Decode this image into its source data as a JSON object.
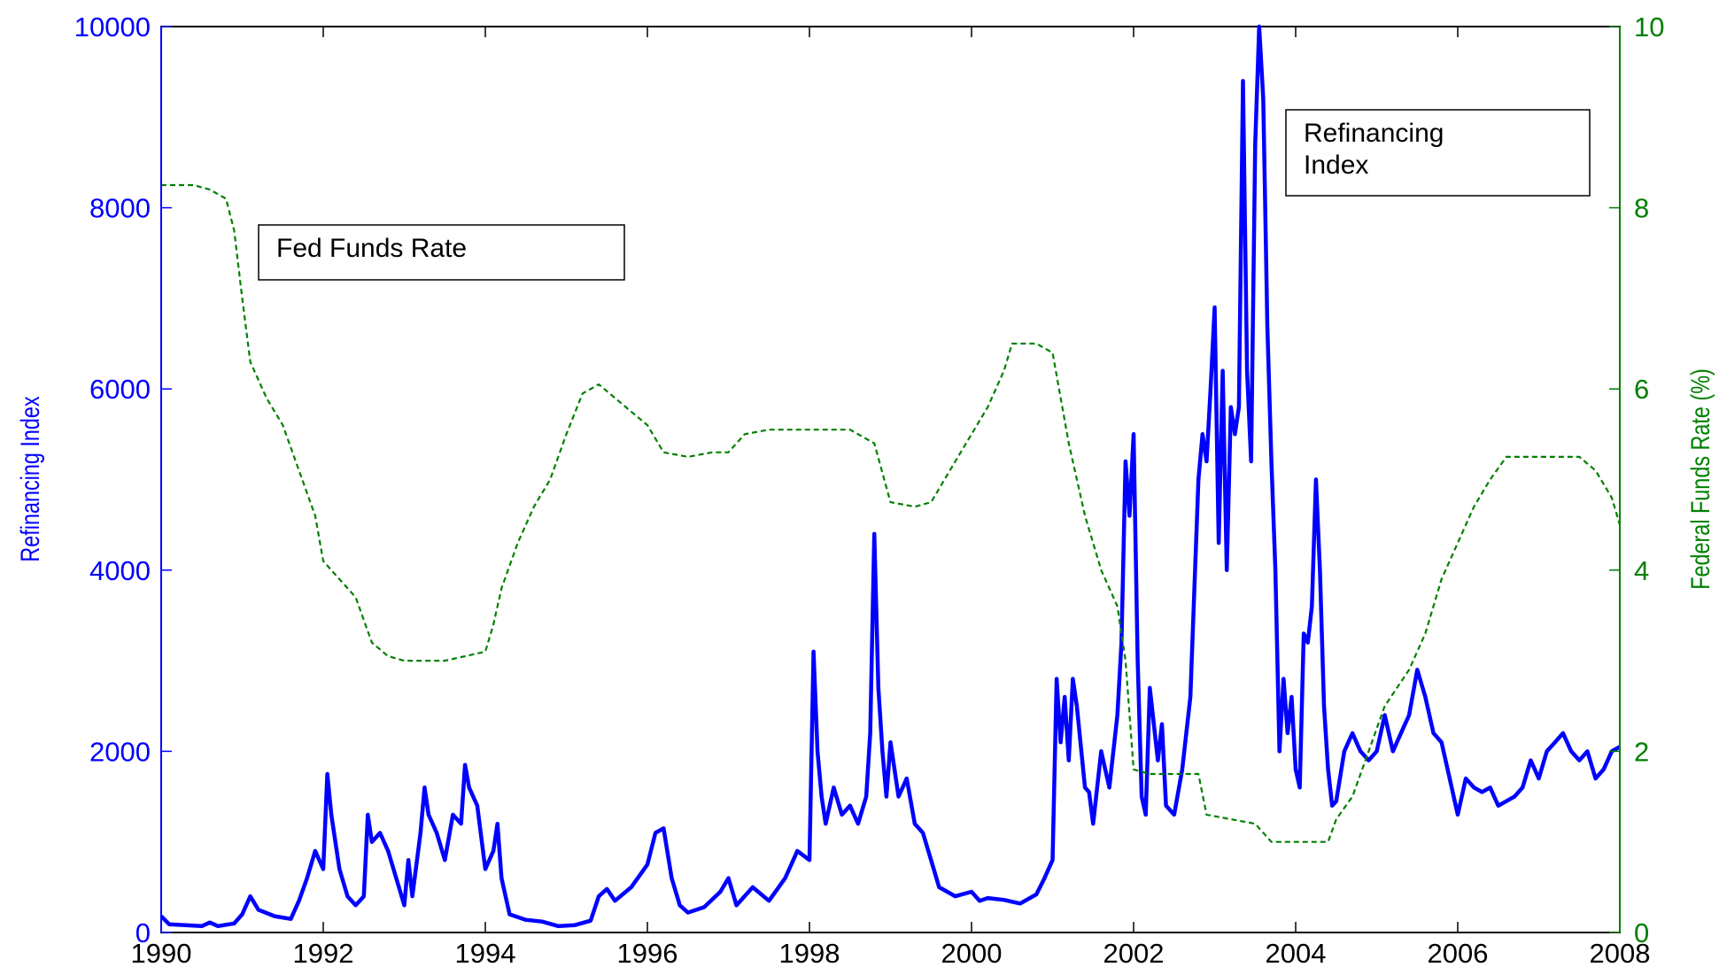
{
  "chart_data": {
    "type": "line",
    "xlim": [
      1990,
      2008
    ],
    "ylim_left": [
      0,
      10000
    ],
    "ylim_right": [
      0,
      10
    ],
    "x_ticks": [
      "1990",
      "1992",
      "1994",
      "1996",
      "1998",
      "2000",
      "2002",
      "2004",
      "2006",
      "2008"
    ],
    "y_left_ticks": [
      "0",
      "2000",
      "4000",
      "6000",
      "8000",
      "10000"
    ],
    "y_right_ticks": [
      "0",
      "2",
      "4",
      "6",
      "8",
      "10"
    ],
    "ylabel_left": "Refinancing Index",
    "ylabel_right": "Federal Funds Rate (%)",
    "grid": false,
    "colors": {
      "refinancing": "#0000ff",
      "fed_funds": "#008000",
      "left_axis": "#0000ff",
      "right_axis": "#008000"
    },
    "annotations": [
      {
        "text": "Fed Funds Rate",
        "lines": [
          "Fed Funds Rate"
        ]
      },
      {
        "text": "Refinancing Index",
        "lines": [
          "Refinancing",
          "Index"
        ]
      }
    ],
    "series": [
      {
        "axis": "left",
        "style": "solid",
        "points": [
          [
            1990.0,
            180
          ],
          [
            1990.1,
            90
          ],
          [
            1990.3,
            80
          ],
          [
            1990.5,
            70
          ],
          [
            1990.6,
            110
          ],
          [
            1990.7,
            70
          ],
          [
            1990.9,
            100
          ],
          [
            1991.0,
            200
          ],
          [
            1991.1,
            400
          ],
          [
            1991.2,
            250
          ],
          [
            1991.4,
            180
          ],
          [
            1991.6,
            150
          ],
          [
            1991.7,
            350
          ],
          [
            1991.8,
            600
          ],
          [
            1991.9,
            900
          ],
          [
            1992.0,
            700
          ],
          [
            1992.05,
            1750
          ],
          [
            1992.1,
            1300
          ],
          [
            1992.2,
            700
          ],
          [
            1992.3,
            400
          ],
          [
            1992.4,
            300
          ],
          [
            1992.5,
            400
          ],
          [
            1992.55,
            1300
          ],
          [
            1992.6,
            1000
          ],
          [
            1992.7,
            1100
          ],
          [
            1992.8,
            900
          ],
          [
            1992.9,
            600
          ],
          [
            1993.0,
            300
          ],
          [
            1993.05,
            800
          ],
          [
            1993.1,
            400
          ],
          [
            1993.2,
            1100
          ],
          [
            1993.25,
            1600
          ],
          [
            1993.3,
            1300
          ],
          [
            1993.4,
            1100
          ],
          [
            1993.5,
            800
          ],
          [
            1993.6,
            1300
          ],
          [
            1993.7,
            1200
          ],
          [
            1993.75,
            1850
          ],
          [
            1993.8,
            1600
          ],
          [
            1993.9,
            1400
          ],
          [
            1994.0,
            700
          ],
          [
            1994.1,
            900
          ],
          [
            1994.15,
            1200
          ],
          [
            1994.2,
            600
          ],
          [
            1994.3,
            200
          ],
          [
            1994.5,
            140
          ],
          [
            1994.7,
            120
          ],
          [
            1994.9,
            70
          ],
          [
            1995.1,
            80
          ],
          [
            1995.3,
            130
          ],
          [
            1995.4,
            400
          ],
          [
            1995.5,
            480
          ],
          [
            1995.6,
            350
          ],
          [
            1995.8,
            500
          ],
          [
            1996.0,
            750
          ],
          [
            1996.1,
            1100
          ],
          [
            1996.2,
            1150
          ],
          [
            1996.3,
            600
          ],
          [
            1996.4,
            300
          ],
          [
            1996.5,
            220
          ],
          [
            1996.7,
            280
          ],
          [
            1996.9,
            450
          ],
          [
            1997.0,
            600
          ],
          [
            1997.1,
            300
          ],
          [
            1997.3,
            500
          ],
          [
            1997.5,
            350
          ],
          [
            1997.7,
            600
          ],
          [
            1997.85,
            900
          ],
          [
            1998.0,
            800
          ],
          [
            1998.05,
            3100
          ],
          [
            1998.1,
            2000
          ],
          [
            1998.15,
            1500
          ],
          [
            1998.2,
            1200
          ],
          [
            1998.3,
            1600
          ],
          [
            1998.4,
            1300
          ],
          [
            1998.5,
            1400
          ],
          [
            1998.6,
            1200
          ],
          [
            1998.7,
            1500
          ],
          [
            1998.75,
            2200
          ],
          [
            1998.8,
            4400
          ],
          [
            1998.85,
            2700
          ],
          [
            1998.9,
            2000
          ],
          [
            1998.95,
            1500
          ],
          [
            1999.0,
            2100
          ],
          [
            1999.1,
            1500
          ],
          [
            1999.2,
            1700
          ],
          [
            1999.3,
            1200
          ],
          [
            1999.4,
            1100
          ],
          [
            1999.5,
            800
          ],
          [
            1999.6,
            500
          ],
          [
            1999.8,
            400
          ],
          [
            2000.0,
            450
          ],
          [
            2000.1,
            350
          ],
          [
            2000.2,
            380
          ],
          [
            2000.4,
            360
          ],
          [
            2000.6,
            320
          ],
          [
            2000.8,
            420
          ],
          [
            2000.9,
            600
          ],
          [
            2001.0,
            800
          ],
          [
            2001.05,
            2800
          ],
          [
            2001.1,
            2100
          ],
          [
            2001.15,
            2600
          ],
          [
            2001.2,
            1900
          ],
          [
            2001.25,
            2800
          ],
          [
            2001.3,
            2500
          ],
          [
            2001.4,
            1600
          ],
          [
            2001.45,
            1550
          ],
          [
            2001.5,
            1200
          ],
          [
            2001.6,
            2000
          ],
          [
            2001.7,
            1600
          ],
          [
            2001.8,
            2400
          ],
          [
            2001.85,
            3200
          ],
          [
            2001.9,
            5200
          ],
          [
            2001.95,
            4600
          ],
          [
            2002.0,
            5500
          ],
          [
            2002.05,
            3000
          ],
          [
            2002.1,
            1500
          ],
          [
            2002.15,
            1300
          ],
          [
            2002.2,
            2700
          ],
          [
            2002.3,
            1900
          ],
          [
            2002.35,
            2300
          ],
          [
            2002.4,
            1400
          ],
          [
            2002.5,
            1300
          ],
          [
            2002.6,
            1800
          ],
          [
            2002.7,
            2600
          ],
          [
            2002.8,
            5000
          ],
          [
            2002.85,
            5500
          ],
          [
            2002.9,
            5200
          ],
          [
            2002.95,
            6000
          ],
          [
            2003.0,
            6900
          ],
          [
            2003.05,
            4300
          ],
          [
            2003.1,
            6200
          ],
          [
            2003.15,
            4000
          ],
          [
            2003.2,
            5800
          ],
          [
            2003.25,
            5500
          ],
          [
            2003.3,
            5800
          ],
          [
            2003.35,
            9400
          ],
          [
            2003.4,
            6200
          ],
          [
            2003.45,
            5200
          ],
          [
            2003.5,
            8700
          ],
          [
            2003.55,
            10000
          ],
          [
            2003.6,
            9200
          ],
          [
            2003.65,
            6700
          ],
          [
            2003.7,
            5200
          ],
          [
            2003.75,
            4000
          ],
          [
            2003.8,
            2000
          ],
          [
            2003.85,
            2800
          ],
          [
            2003.9,
            2200
          ],
          [
            2003.95,
            2600
          ],
          [
            2004.0,
            1800
          ],
          [
            2004.05,
            1600
          ],
          [
            2004.1,
            3300
          ],
          [
            2004.15,
            3200
          ],
          [
            2004.2,
            3600
          ],
          [
            2004.25,
            5000
          ],
          [
            2004.3,
            4000
          ],
          [
            2004.35,
            2500
          ],
          [
            2004.4,
            1800
          ],
          [
            2004.45,
            1400
          ],
          [
            2004.5,
            1450
          ],
          [
            2004.6,
            2000
          ],
          [
            2004.7,
            2200
          ],
          [
            2004.8,
            2000
          ],
          [
            2004.9,
            1900
          ],
          [
            2005.0,
            2000
          ],
          [
            2005.1,
            2400
          ],
          [
            2005.2,
            2000
          ],
          [
            2005.3,
            2200
          ],
          [
            2005.4,
            2400
          ],
          [
            2005.5,
            2900
          ],
          [
            2005.6,
            2600
          ],
          [
            2005.7,
            2200
          ],
          [
            2005.8,
            2100
          ],
          [
            2005.9,
            1700
          ],
          [
            2006.0,
            1300
          ],
          [
            2006.1,
            1700
          ],
          [
            2006.2,
            1600
          ],
          [
            2006.3,
            1550
          ],
          [
            2006.4,
            1600
          ],
          [
            2006.5,
            1400
          ],
          [
            2006.6,
            1450
          ],
          [
            2006.7,
            1500
          ],
          [
            2006.8,
            1600
          ],
          [
            2006.9,
            1900
          ],
          [
            2007.0,
            1700
          ],
          [
            2007.1,
            2000
          ],
          [
            2007.2,
            2100
          ],
          [
            2007.3,
            2200
          ],
          [
            2007.4,
            2000
          ],
          [
            2007.5,
            1900
          ],
          [
            2007.6,
            2000
          ],
          [
            2007.7,
            1700
          ],
          [
            2007.8,
            1800
          ],
          [
            2007.9,
            2000
          ],
          [
            2008.0,
            2050
          ]
        ]
      },
      {
        "axis": "right",
        "style": "dotted",
        "points": [
          [
            1990.0,
            8.25
          ],
          [
            1990.2,
            8.25
          ],
          [
            1990.4,
            8.25
          ],
          [
            1990.6,
            8.2
          ],
          [
            1990.8,
            8.1
          ],
          [
            1990.9,
            7.75
          ],
          [
            1991.0,
            7.0
          ],
          [
            1991.1,
            6.3
          ],
          [
            1991.3,
            5.9
          ],
          [
            1991.5,
            5.6
          ],
          [
            1991.7,
            5.1
          ],
          [
            1991.9,
            4.6
          ],
          [
            1992.0,
            4.1
          ],
          [
            1992.2,
            3.9
          ],
          [
            1992.4,
            3.7
          ],
          [
            1992.6,
            3.2
          ],
          [
            1992.8,
            3.05
          ],
          [
            1993.0,
            3.0
          ],
          [
            1993.5,
            3.0
          ],
          [
            1994.0,
            3.1
          ],
          [
            1994.1,
            3.4
          ],
          [
            1994.2,
            3.8
          ],
          [
            1994.4,
            4.3
          ],
          [
            1994.6,
            4.7
          ],
          [
            1994.8,
            5.0
          ],
          [
            1995.0,
            5.5
          ],
          [
            1995.2,
            5.95
          ],
          [
            1995.4,
            6.05
          ],
          [
            1995.6,
            5.9
          ],
          [
            1995.8,
            5.75
          ],
          [
            1996.0,
            5.6
          ],
          [
            1996.2,
            5.3
          ],
          [
            1996.5,
            5.25
          ],
          [
            1996.8,
            5.3
          ],
          [
            1997.0,
            5.3
          ],
          [
            1997.2,
            5.5
          ],
          [
            1997.5,
            5.55
          ],
          [
            1998.0,
            5.55
          ],
          [
            1998.5,
            5.55
          ],
          [
            1998.8,
            5.4
          ],
          [
            1999.0,
            4.75
          ],
          [
            1999.3,
            4.7
          ],
          [
            1999.5,
            4.75
          ],
          [
            1999.8,
            5.2
          ],
          [
            2000.0,
            5.5
          ],
          [
            2000.2,
            5.8
          ],
          [
            2000.4,
            6.2
          ],
          [
            2000.5,
            6.5
          ],
          [
            2000.8,
            6.5
          ],
          [
            2001.0,
            6.4
          ],
          [
            2001.2,
            5.4
          ],
          [
            2001.4,
            4.6
          ],
          [
            2001.6,
            4.0
          ],
          [
            2001.8,
            3.6
          ],
          [
            2001.9,
            3.0
          ],
          [
            2002.0,
            1.8
          ],
          [
            2002.2,
            1.75
          ],
          [
            2002.5,
            1.75
          ],
          [
            2002.8,
            1.75
          ],
          [
            2002.9,
            1.3
          ],
          [
            2003.2,
            1.25
          ],
          [
            2003.5,
            1.2
          ],
          [
            2003.7,
            1.0
          ],
          [
            2004.0,
            1.0
          ],
          [
            2004.4,
            1.0
          ],
          [
            2004.5,
            1.25
          ],
          [
            2004.7,
            1.5
          ],
          [
            2004.9,
            2.0
          ],
          [
            2005.1,
            2.5
          ],
          [
            2005.4,
            2.9
          ],
          [
            2005.6,
            3.3
          ],
          [
            2005.8,
            3.9
          ],
          [
            2006.0,
            4.3
          ],
          [
            2006.2,
            4.7
          ],
          [
            2006.4,
            5.0
          ],
          [
            2006.6,
            5.25
          ],
          [
            2007.0,
            5.25
          ],
          [
            2007.5,
            5.25
          ],
          [
            2007.7,
            5.1
          ],
          [
            2007.9,
            4.8
          ],
          [
            2008.0,
            4.5
          ]
        ]
      }
    ]
  }
}
